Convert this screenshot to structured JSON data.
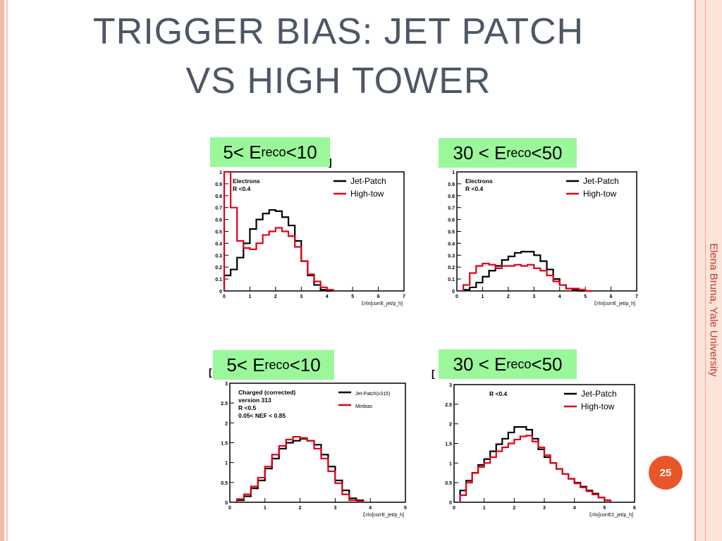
{
  "slide": {
    "title_line1": "TRIGGER BIAS: JET PATCH",
    "title_line2": "VS HIGH TOWER",
    "side_text": "Elena Bruna, Yale University",
    "page_number": "25",
    "colors": {
      "accent": "#e8562a",
      "title": "#4d5766",
      "border": "#f4b9a6",
      "badge": "#9af79a"
    }
  },
  "chart_data": [
    {
      "type": "line",
      "badge": {
        "pre": "5< E",
        "sub": "reco",
        "post": " <10"
      },
      "legend_title": [
        "Electrons",
        "R <0.4"
      ],
      "xlabel": "ξ=ln[corrE_jet/p_h]",
      "xlim": [
        0,
        7
      ],
      "ylim": [
        0,
        1
      ],
      "xticks": [
        "0",
        "1",
        "2",
        "3",
        "4",
        "5",
        "6",
        "7"
      ],
      "yticks": [
        "0",
        "0.1",
        "0.2",
        "0.3",
        "0.4",
        "0.5",
        "0.6",
        "0.7",
        "0.8",
        "0.9",
        "1"
      ],
      "edges": [
        0,
        0.25,
        0.5,
        0.75,
        1.0,
        1.25,
        1.5,
        1.75,
        2.0,
        2.25,
        2.5,
        2.75,
        3.0,
        3.25,
        3.5,
        3.75,
        4.0,
        4.25
      ],
      "series": [
        {
          "name": "Jet-Patch",
          "color": "#000000",
          "values": [
            0.13,
            0.18,
            0.28,
            0.4,
            0.52,
            0.6,
            0.65,
            0.68,
            0.67,
            0.62,
            0.55,
            0.42,
            0.25,
            0.13,
            0.05,
            0.01,
            0.0
          ]
        },
        {
          "name": "High-tow",
          "color": "#e0001a",
          "values": [
            1.0,
            0.7,
            0.42,
            0.36,
            0.35,
            0.4,
            0.47,
            0.5,
            0.53,
            0.5,
            0.46,
            0.37,
            0.25,
            0.14,
            0.08,
            0.03,
            0.01
          ]
        }
      ]
    },
    {
      "type": "line",
      "badge": {
        "pre": "30 < E",
        "sub": "reco",
        "post": " <50"
      },
      "legend_title": [
        "Electrons",
        "R <0.4"
      ],
      "xlabel": "ξ=ln[corrE_jet/p_h]",
      "xlim": [
        0,
        7
      ],
      "ylim": [
        0,
        1
      ],
      "xticks": [
        "0",
        "1",
        "2",
        "3",
        "4",
        "5",
        "6",
        "7"
      ],
      "yticks": [
        "0",
        "0.1",
        "0.2",
        "0.3",
        "0.4",
        "0.5",
        "0.6",
        "0.7",
        "0.8",
        "0.9",
        "1"
      ],
      "edges": [
        0.25,
        0.5,
        0.75,
        1.0,
        1.25,
        1.5,
        1.75,
        2.0,
        2.25,
        2.5,
        2.75,
        3.0,
        3.25,
        3.5,
        3.75,
        4.0,
        4.25,
        4.5,
        4.75,
        5.0,
        5.25
      ],
      "series": [
        {
          "name": "Jet-Patch",
          "color": "#000000",
          "values": [
            0.01,
            0.03,
            0.07,
            0.12,
            0.17,
            0.21,
            0.26,
            0.29,
            0.32,
            0.33,
            0.33,
            0.3,
            0.25,
            0.18,
            0.1,
            0.05,
            0.02,
            0.01,
            0.0,
            0.0
          ]
        },
        {
          "name": "High-tow",
          "color": "#e0001a",
          "values": [
            0.05,
            0.15,
            0.21,
            0.23,
            0.22,
            0.19,
            0.21,
            0.21,
            0.22,
            0.21,
            0.22,
            0.19,
            0.17,
            0.13,
            0.08,
            0.05,
            0.02,
            0.02,
            0.01,
            0.0
          ]
        }
      ]
    },
    {
      "type": "line",
      "badge": {
        "pre": "5< E",
        "sub": "reco",
        "post": " <10"
      },
      "legend_title": [
        "Charged (corrected)",
        "version 313",
        "R <0.5",
        "0.05< NEF < 0.85"
      ],
      "xlabel": "ξ=ln[corrE_jet/p_h]",
      "xlim": [
        0,
        5
      ],
      "ylim": [
        0,
        3
      ],
      "xticks": [
        "0",
        "1",
        "2",
        "3",
        "4",
        "5"
      ],
      "yticks": [
        "0",
        "0.5",
        "1",
        "1.5",
        "2",
        "2.5",
        "3"
      ],
      "edges": [
        0.2,
        0.4,
        0.6,
        0.8,
        1.0,
        1.2,
        1.4,
        1.6,
        1.8,
        2.0,
        2.2,
        2.4,
        2.6,
        2.8,
        3.0,
        3.2,
        3.4,
        3.6,
        3.8
      ],
      "series": [
        {
          "name": "Jet-Patch(v315)",
          "color": "#000000",
          "values": [
            0.05,
            0.15,
            0.35,
            0.55,
            0.85,
            1.1,
            1.35,
            1.5,
            1.55,
            1.6,
            1.55,
            1.45,
            1.2,
            0.9,
            0.55,
            0.3,
            0.1,
            0.05
          ]
        },
        {
          "name": "Minbias",
          "color": "#e0001a",
          "values": [
            0.08,
            0.2,
            0.4,
            0.62,
            0.9,
            1.2,
            1.42,
            1.58,
            1.65,
            1.62,
            1.55,
            1.35,
            1.1,
            0.78,
            0.48,
            0.2,
            0.05,
            0.02
          ]
        }
      ]
    },
    {
      "type": "line",
      "badge": {
        "pre": "30 < E",
        "sub": "reco",
        "post": " <50"
      },
      "legend_title": [
        "R <0.4"
      ],
      "xlabel": "ξ=ln[corrE2_jet/p_h]",
      "xlim": [
        0,
        6
      ],
      "ylim": [
        0,
        3
      ],
      "xticks": [
        "0",
        "1",
        "2",
        "3",
        "4",
        "5",
        "6"
      ],
      "yticks": [
        "0",
        "0.5",
        "1",
        "1.5",
        "2",
        "2.5",
        "3"
      ],
      "edges": [
        0.2,
        0.4,
        0.6,
        0.8,
        1.0,
        1.2,
        1.4,
        1.6,
        1.8,
        2.0,
        2.2,
        2.4,
        2.6,
        2.8,
        3.0,
        3.2,
        3.4,
        3.6,
        3.8,
        4.0,
        4.2,
        4.4,
        4.6,
        4.8,
        5.0,
        5.2
      ],
      "series": [
        {
          "name": "Jet-Patch",
          "color": "#000000",
          "values": [
            0.3,
            0.55,
            0.75,
            0.95,
            1.1,
            1.3,
            1.48,
            1.62,
            1.78,
            1.92,
            1.92,
            1.85,
            1.62,
            1.35,
            1.15,
            1.0,
            0.85,
            0.72,
            0.6,
            0.5,
            0.4,
            0.3,
            0.22,
            0.12,
            0.05
          ]
        },
        {
          "name": "High-tow",
          "color": "#e0001a",
          "values": [
            0.18,
            0.5,
            0.75,
            0.9,
            1.0,
            1.15,
            1.3,
            1.4,
            1.5,
            1.6,
            1.68,
            1.7,
            1.55,
            1.4,
            1.2,
            1.0,
            0.85,
            0.72,
            0.6,
            0.48,
            0.38,
            0.28,
            0.2,
            0.12,
            0.05
          ]
        }
      ]
    }
  ]
}
